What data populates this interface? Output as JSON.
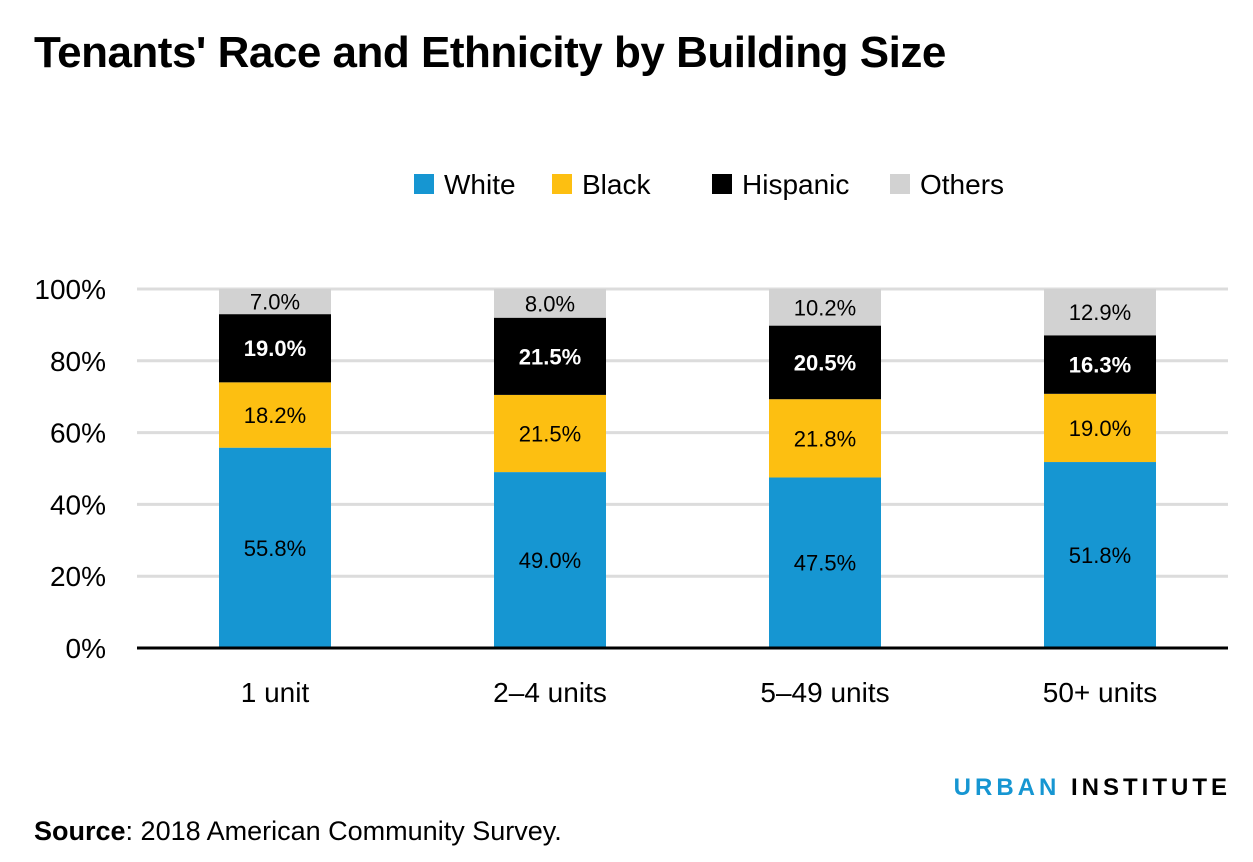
{
  "chart_data": {
    "type": "bar",
    "stacked": true,
    "title": "Tenants' Race and Ethnicity by Building Size",
    "categories": [
      "1 unit",
      "2–4 units",
      "5–49 units",
      "50+ units"
    ],
    "series": [
      {
        "name": "White",
        "color": "#1696d2",
        "label_color": "#000000",
        "values": [
          55.8,
          49.0,
          47.5,
          51.8
        ],
        "labels": [
          "55.8%",
          "49.0%",
          "47.5%",
          "51.8%"
        ]
      },
      {
        "name": "Black",
        "color": "#fdbf11",
        "label_color": "#000000",
        "values": [
          18.2,
          21.5,
          21.8,
          19.0
        ],
        "labels": [
          "18.2%",
          "21.5%",
          "21.8%",
          "19.0%"
        ]
      },
      {
        "name": "Hispanic",
        "color": "#000000",
        "label_color": "#ffffff",
        "values": [
          19.0,
          21.5,
          20.5,
          16.3
        ],
        "labels": [
          "19.0%",
          "21.5%",
          "20.5%",
          "16.3%"
        ]
      },
      {
        "name": "Others",
        "color": "#d2d2d2",
        "label_color": "#000000",
        "values": [
          7.0,
          8.0,
          10.2,
          12.9
        ],
        "labels": [
          "7.0%",
          "8.0%",
          "10.2%",
          "12.9%"
        ]
      }
    ],
    "yticks": [
      0,
      20,
      40,
      60,
      80,
      100
    ],
    "ytick_labels": [
      "0%",
      "20%",
      "40%",
      "60%",
      "80%",
      "100%"
    ],
    "ylim": [
      0,
      100
    ],
    "grid": true,
    "legend_position": "top-center"
  },
  "source": {
    "label": "Source",
    "text": ": 2018 American Community Survey."
  },
  "logo": {
    "part1": "URBAN",
    "part2": "INSTITUTE"
  }
}
